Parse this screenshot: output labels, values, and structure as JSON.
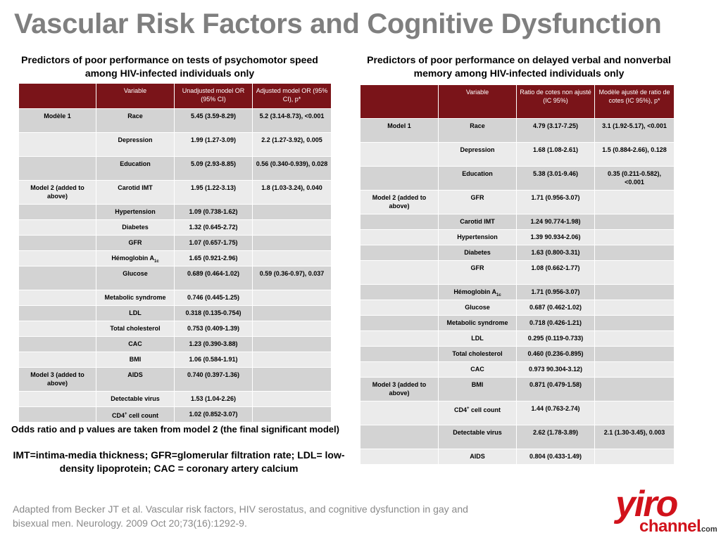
{
  "slide_title": "Vascular Risk Factors and Cognitive Dysfunction",
  "left_caption": "Predictors of poor performance on tests of psychomotor speed among HIV-infected individuals only",
  "right_caption": "Predictors of poor performance on delayed verbal and nonverbal memory among  HIV-infected individuals only",
  "left_table": {
    "headers": [
      "",
      "Variable",
      "Unadjusted model OR (95% CI)",
      "Adjusted model OR (95% CI), p*"
    ],
    "rows": [
      [
        "Modèle 1",
        "Race",
        "5.45 (3.59-8.29)",
        "5.2 (3.14-8.73), <0.001"
      ],
      [
        "",
        "Depression",
        "1.99 (1.27-3.09)",
        "2.2 (1.27-3.92), 0.005"
      ],
      [
        "",
        "Education",
        "5.09 (2.93-8.85)",
        "0.56 (0.340-0.939), 0.028"
      ],
      [
        "Model 2 (added to above)",
        "Carotid IMT",
        "1.95 (1.22-3.13)",
        "1.8 (1.03-3.24), 0.040"
      ],
      [
        "",
        "Hypertension",
        "1.09 (0.738-1.62)",
        ""
      ],
      [
        "",
        "Diabetes",
        "1.32 (0.645-2.72)",
        ""
      ],
      [
        "",
        "GFR",
        "1.07 (0.657-1.75)",
        ""
      ],
      [
        "",
        "Hémoglobin A1c",
        "1.65 (0.921-2.96)",
        ""
      ],
      [
        "",
        "Glucose",
        "0.689 (0.464-1.02)",
        "0.59 (0.36-0.97), 0.037"
      ],
      [
        "",
        "Metabolic syndrome",
        "0.746 (0.445-1.25)",
        ""
      ],
      [
        "",
        "LDL",
        "0.318 (0.135-0.754)",
        ""
      ],
      [
        "",
        "Total cholesterol",
        "0.753 (0.409-1.39)",
        ""
      ],
      [
        "",
        "CAC",
        "1.23 (0.390-3.88)",
        ""
      ],
      [
        "",
        "BMI",
        "1.06 (0.584-1.91)",
        ""
      ],
      [
        "Model 3 (added to above)",
        "AIDS",
        "0.740 (0.397-1.36)",
        ""
      ],
      [
        "",
        "Detectable virus",
        "1.53 (1.04-2.26)",
        ""
      ],
      [
        "",
        "CD4+ cell count",
        "1.02 (0.852-3.07)",
        ""
      ]
    ]
  },
  "right_table": {
    "headers": [
      "",
      "Variable",
      "Ratio de cotes non ajusté (IC 95%)",
      "Modèle ajusté de ratio de cotes (IC 95%), p*"
    ],
    "rows": [
      [
        "Model 1",
        "Race",
        "4.79 (3.17-7.25)",
        "3.1 (1.92-5.17), <0.001"
      ],
      [
        "",
        "Depression",
        "1.68 (1.08-2.61)",
        "1.5 (0.884-2.66), 0.128"
      ],
      [
        "",
        "Education",
        "5.38 (3.01-9.46)",
        "0.35 (0.211-0.582), <0.001"
      ],
      [
        "Model 2 (added to above)",
        "GFR",
        "1.71 (0.956-3.07)",
        ""
      ],
      [
        "",
        "Carotid IMT",
        "1.24 90.774-1.98)",
        ""
      ],
      [
        "",
        "Hypertension",
        "1.39 90.934-2.06)",
        ""
      ],
      [
        "",
        "Diabetes",
        "1.63 (0.800-3.31)",
        ""
      ],
      [
        "",
        "GFR",
        "1.08 (0.662-1.77)",
        ""
      ],
      [
        "",
        "Hémoglobin A1c",
        "1.71 (0.956-3.07)",
        ""
      ],
      [
        "",
        "Glucose",
        "0.687 (0.462-1.02)",
        ""
      ],
      [
        "",
        "Metabolic syndrome",
        "0.718 (0.426-1.21)",
        ""
      ],
      [
        "",
        "LDL",
        "0.295 (0.119-0.733)",
        ""
      ],
      [
        "",
        "Total cholesterol",
        "0.460 (0.236-0.895)",
        ""
      ],
      [
        "",
        "CAC",
        "0.973 90.304-3.12)",
        ""
      ],
      [
        "Model 3 (added to above)",
        "BMI",
        "0.871 (0.479-1.58)",
        ""
      ],
      [
        "",
        "CD4+ cell count",
        "1.44 (0.763-2.74)",
        ""
      ],
      [
        "",
        "Detectable virus",
        "2.62 (1.78-3.89)",
        "2.1 (1.30-3.45), 0.003"
      ],
      [
        "",
        "AIDS",
        "0.804 (0.433-1.49)",
        ""
      ]
    ]
  },
  "left_note": "Odds ratio and p values are taken from model 2 (the final significant model)",
  "abbrev_note": "IMT=intima-media thickness; GFR=glomerular filtration rate; LDL= low-density lipoprotein; CAC = coronary artery calcium",
  "citation": "Adapted from Becker JT et al. Vascular risk factors, HIV serostatus, and cognitive dysfunction in gay and bisexual men. Neurology. 2009 Oct 20;73(16):1292-9.",
  "logo": {
    "word": "yiro",
    "sub": "channel",
    "suffix": ".com",
    "brand_color": "#d1121b"
  },
  "colors": {
    "header_bg": "#7a1419",
    "row_dark": "#d3d3d3",
    "row_light": "#ebebeb",
    "title": "#7f7f7f"
  }
}
